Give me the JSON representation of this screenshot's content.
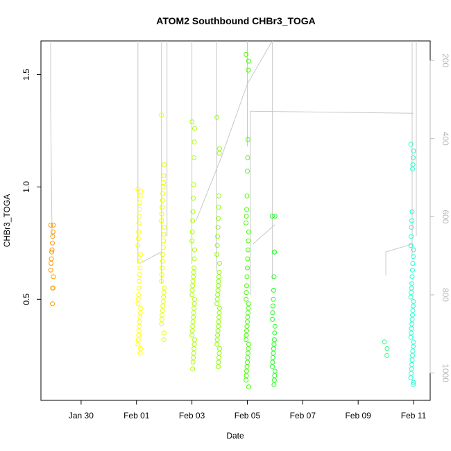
{
  "chart_data": {
    "type": "scatter",
    "title": "ATOM2 Southbound CHBr3_TOGA",
    "xlabel": "Date",
    "ylabel": "CHBr3_TOGA",
    "x_ticks": [
      "Jan 30",
      "Feb 01",
      "Feb 03",
      "Feb 05",
      "Feb 07",
      "Feb 09",
      "Feb 11"
    ],
    "y_ticks": [
      "0.5",
      "1.0",
      "1.5"
    ],
    "y_right_ticks": [
      "200",
      "400",
      "600",
      "800",
      "1000"
    ],
    "xlim_days": [
      -1.45,
      12.6
    ],
    "ylim": [
      0.05,
      1.65
    ],
    "y_right_lim": [
      1070,
      150
    ],
    "y_right_reversed": true,
    "grid": false,
    "marker": "open-circle",
    "color_scale": "by date, orange to cyan",
    "overlay_line_color": "#c8c8c8",
    "overlay_description": "secondary series drawn as grey line against reversed right axis",
    "x_day_origin": "Jan 30 = 0 (values are days relative to Jan 30)",
    "groups": [
      {
        "date": "Jan 29",
        "x": -1.05,
        "color": "#ff9900",
        "values": [
          0.83,
          0.83,
          0.8,
          0.78,
          0.75,
          0.72,
          0.71,
          0.68,
          0.66,
          0.63,
          0.6,
          0.55,
          0.55,
          0.48
        ]
      },
      {
        "date": "Feb 01",
        "x": 2.1,
        "color": "#ffff00",
        "values": [
          0.99,
          0.98,
          0.96,
          0.93,
          0.9,
          0.87,
          0.84,
          0.8,
          0.77,
          0.74,
          0.7,
          0.67,
          0.64,
          0.61,
          0.58,
          0.55,
          0.52,
          0.5,
          0.48,
          0.46,
          0.44,
          0.42,
          0.4,
          0.38,
          0.36,
          0.34,
          0.32,
          0.3,
          0.28,
          0.26
        ]
      },
      {
        "date": "Feb 02",
        "x": 2.95,
        "color": "#e6ff00",
        "values": [
          1.32,
          1.1,
          1.05,
          1.02,
          1.0,
          0.97,
          0.94,
          0.91,
          0.88,
          0.85,
          0.82,
          0.79,
          0.76,
          0.73,
          0.7,
          0.67,
          0.64,
          0.61,
          0.58,
          0.55,
          0.53,
          0.51,
          0.49,
          0.47,
          0.45,
          0.43,
          0.41,
          0.39,
          0.35,
          0.32
        ]
      },
      {
        "date": "Feb 03",
        "x": 4.05,
        "color": "#aaff00",
        "values": [
          1.29,
          1.26,
          1.2,
          1.13,
          1.01,
          0.95,
          0.89,
          0.85,
          0.8,
          0.76,
          0.72,
          0.68,
          0.64,
          0.62,
          0.6,
          0.58,
          0.56,
          0.54,
          0.52,
          0.5,
          0.48,
          0.46,
          0.44,
          0.42,
          0.4,
          0.38,
          0.36,
          0.34,
          0.32,
          0.3,
          0.28,
          0.26,
          0.24,
          0.22,
          0.19
        ]
      },
      {
        "date": "Feb 04",
        "x": 4.95,
        "color": "#88ff00",
        "values": [
          1.31,
          1.17,
          1.15,
          0.96,
          0.91,
          0.86,
          0.82,
          0.78,
          0.74,
          0.7,
          0.66,
          0.62,
          0.6,
          0.58,
          0.56,
          0.54,
          0.52,
          0.5,
          0.48,
          0.46,
          0.44,
          0.42,
          0.4,
          0.38,
          0.36,
          0.34,
          0.32,
          0.3,
          0.28,
          0.26,
          0.24,
          0.22,
          0.2
        ]
      },
      {
        "date": "Feb 05",
        "x": 6.0,
        "color": "#44ff00",
        "values": [
          1.59,
          1.56,
          1.52,
          1.21,
          1.13,
          1.07,
          0.96,
          0.9,
          0.87,
          0.84,
          0.8,
          0.76,
          0.72,
          0.68,
          0.64,
          0.6,
          0.56,
          0.53,
          0.5,
          0.48,
          0.46,
          0.44,
          0.42,
          0.4,
          0.38,
          0.36,
          0.34,
          0.32,
          0.3,
          0.28,
          0.26,
          0.24,
          0.22,
          0.2,
          0.18,
          0.16,
          0.14,
          0.11
        ]
      },
      {
        "date": "Feb 06",
        "x": 6.95,
        "color": "#22ff22",
        "values": [
          0.87,
          0.87,
          0.71,
          0.71,
          0.6,
          0.54,
          0.5,
          0.47,
          0.44,
          0.41,
          0.38,
          0.35,
          0.32,
          0.3,
          0.28,
          0.26,
          0.24,
          0.22,
          0.2,
          0.18,
          0.16,
          0.14,
          0.12
        ]
      },
      {
        "date": "Feb 10",
        "x": 11.0,
        "color": "#33ff88",
        "values": [
          0.31,
          0.28,
          0.25
        ]
      },
      {
        "date": "Feb 11",
        "x": 11.95,
        "color": "#22ffcc",
        "values": [
          1.19,
          1.16,
          1.13,
          1.1,
          1.08,
          0.89,
          0.85,
          0.82,
          0.78,
          0.74,
          0.72,
          0.69,
          0.66,
          0.63,
          0.6,
          0.57,
          0.55,
          0.53,
          0.51,
          0.49,
          0.47,
          0.45,
          0.43,
          0.41,
          0.39,
          0.37,
          0.35,
          0.33,
          0.31,
          0.29,
          0.27,
          0.25,
          0.23,
          0.21,
          0.19,
          0.17,
          0.15,
          0.13,
          0.12
        ]
      }
    ],
    "overlay_segments": [
      [
        [
          -1.1,
          150
        ],
        [
          -1.1,
          320
        ]
      ],
      [
        [
          -1.1,
          320
        ],
        [
          -1.05,
          650
        ]
      ],
      [
        [
          2.05,
          150
        ],
        [
          2.05,
          720
        ]
      ],
      [
        [
          2.1,
          720
        ],
        [
          2.9,
          690
        ]
      ],
      [
        [
          2.9,
          150
        ],
        [
          2.9,
          770
        ]
      ],
      [
        [
          3.1,
          150
        ],
        [
          3.1,
          650
        ]
      ],
      [
        [
          4.0,
          150
        ],
        [
          4.0,
          720
        ]
      ],
      [
        [
          4.15,
          610
        ],
        [
          5.05,
          450
        ]
      ],
      [
        [
          4.9,
          150
        ],
        [
          4.9,
          740
        ]
      ],
      [
        [
          5.05,
          450
        ],
        [
          6.0,
          260
        ]
      ],
      [
        [
          6.0,
          150
        ],
        [
          6.0,
          420
        ]
      ],
      [
        [
          6.0,
          260
        ],
        [
          6.9,
          140
        ]
      ],
      [
        [
          6.1,
          330
        ],
        [
          6.1,
          800
        ]
      ],
      [
        [
          6.1,
          330
        ],
        [
          12.0,
          335
        ]
      ],
      [
        [
          6.9,
          150
        ],
        [
          6.9,
          760
        ]
      ],
      [
        [
          6.2,
          670
        ],
        [
          7.0,
          620
        ]
      ],
      [
        [
          11.0,
          750
        ],
        [
          11.0,
          690
        ]
      ],
      [
        [
          11.0,
          690
        ],
        [
          11.95,
          670
        ]
      ],
      [
        [
          11.95,
          150
        ],
        [
          11.95,
          700
        ]
      ],
      [
        [
          12.1,
          150
        ],
        [
          12.1,
          650
        ]
      ]
    ]
  }
}
